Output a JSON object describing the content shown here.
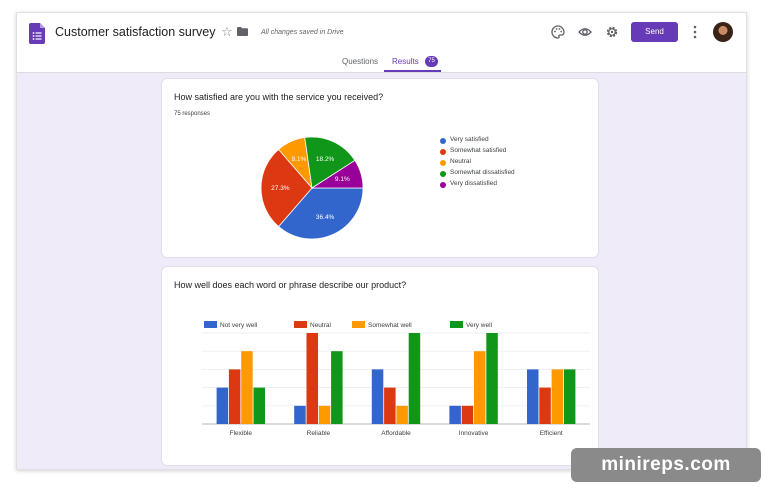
{
  "header": {
    "title": "Customer satisfaction survey",
    "save_status": "All changes saved in Drive",
    "send_label": "Send",
    "icons": [
      "palette-icon",
      "preview-eye-icon",
      "settings-gear-icon",
      "more-vert-icon"
    ],
    "brand_color": "#673ab7"
  },
  "tabs": {
    "questions": "Questions",
    "results": "Results",
    "results_count": "75"
  },
  "question1": {
    "title": "How satisfied are you with the service you received?",
    "responses": "75 responses",
    "slices": [
      {
        "label": "Very satisfied",
        "value": 36.4,
        "color": "#3366cc",
        "text": "36.4%"
      },
      {
        "label": "Somewhat satisfied",
        "value": 27.3,
        "color": "#dc3912",
        "text": "27.3%"
      },
      {
        "label": "Neutral",
        "value": 9.1,
        "color": "#ff9900",
        "text": "9.1%"
      },
      {
        "label": "Somewhat dissatisfied",
        "value": 18.2,
        "color": "#109618",
        "text": "18.2%"
      },
      {
        "label": "Very dissatisfied",
        "value": 9.1,
        "color": "#990099",
        "text": "9.1%"
      }
    ]
  },
  "question2": {
    "title": "How well does each word or phrase describe our product?"
  },
  "chart_data": [
    {
      "type": "pie",
      "title": "How satisfied are you with the service you received?",
      "categories": [
        "Very satisfied",
        "Somewhat satisfied",
        "Neutral",
        "Somewhat dissatisfied",
        "Very dissatisfied"
      ],
      "values": [
        36.4,
        27.3,
        9.1,
        18.2,
        9.1
      ],
      "legend": "right"
    },
    {
      "type": "bar",
      "title": "How well does each word or phrase describe our product?",
      "categories": [
        "Flexible",
        "Reliable",
        "Affordable",
        "Innovative",
        "Efficient"
      ],
      "series": [
        {
          "name": "Not very well",
          "color": "#3366cc",
          "values": [
            2,
            1,
            3,
            1,
            3
          ]
        },
        {
          "name": "Neutral",
          "color": "#dc3912",
          "values": [
            3,
            5,
            2,
            1,
            2
          ]
        },
        {
          "name": "Somewhat well",
          "color": "#ff9900",
          "values": [
            4,
            1,
            1,
            4,
            3
          ]
        },
        {
          "name": "Very well",
          "color": "#109618",
          "values": [
            2,
            4,
            5,
            5,
            3
          ]
        }
      ],
      "ylim": [
        0,
        5
      ],
      "grid": true,
      "legend": "top-left"
    }
  ],
  "watermark": "minireps.com"
}
